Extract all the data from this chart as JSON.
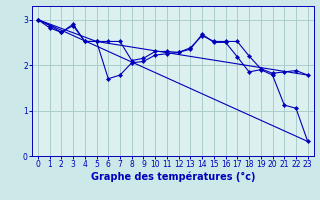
{
  "title": "Graphe des températures (°c)",
  "background_color": "#cce8e8",
  "plot_bg_color": "#ddf0f0",
  "grid_color": "#aacccc",
  "line_color": "#0000bb",
  "axis_color": "#0000bb",
  "xlim": [
    -0.5,
    23.5
  ],
  "ylim": [
    0,
    3.3
  ],
  "yticks": [
    0,
    1,
    2,
    3
  ],
  "xticks": [
    0,
    1,
    2,
    3,
    4,
    5,
    6,
    7,
    8,
    9,
    10,
    11,
    12,
    13,
    14,
    15,
    16,
    17,
    18,
    19,
    20,
    21,
    22,
    23
  ],
  "series1_x": [
    0,
    1,
    2,
    3,
    4,
    5,
    6,
    7,
    8,
    9,
    10,
    11,
    12,
    13,
    14,
    15,
    16,
    17,
    18,
    19,
    20,
    21,
    22,
    23
  ],
  "series1_y": [
    3.0,
    2.87,
    2.72,
    2.9,
    2.52,
    2.52,
    1.7,
    1.78,
    2.05,
    2.08,
    2.22,
    2.25,
    2.28,
    2.35,
    2.68,
    2.5,
    2.5,
    2.18,
    1.85,
    1.9,
    1.78,
    1.12,
    1.05,
    0.32
  ],
  "series2_x": [
    0,
    1,
    2,
    3,
    4,
    5,
    6,
    7,
    8,
    9,
    10,
    11,
    12,
    13,
    14,
    15,
    16,
    17,
    18,
    19,
    20,
    21,
    22,
    23
  ],
  "series2_y": [
    3.0,
    2.82,
    2.72,
    2.87,
    2.52,
    2.52,
    2.52,
    2.52,
    2.1,
    2.15,
    2.3,
    2.3,
    2.28,
    2.38,
    2.65,
    2.52,
    2.52,
    2.52,
    2.2,
    1.92,
    1.82,
    1.85,
    1.88,
    1.78
  ],
  "series3_x": [
    0,
    5,
    23
  ],
  "series3_y": [
    3.0,
    2.52,
    1.78
  ],
  "series4_x": [
    0,
    23
  ],
  "series4_y": [
    3.0,
    0.32
  ],
  "xlabel_fontsize": 7,
  "tick_fontsize": 5.5
}
